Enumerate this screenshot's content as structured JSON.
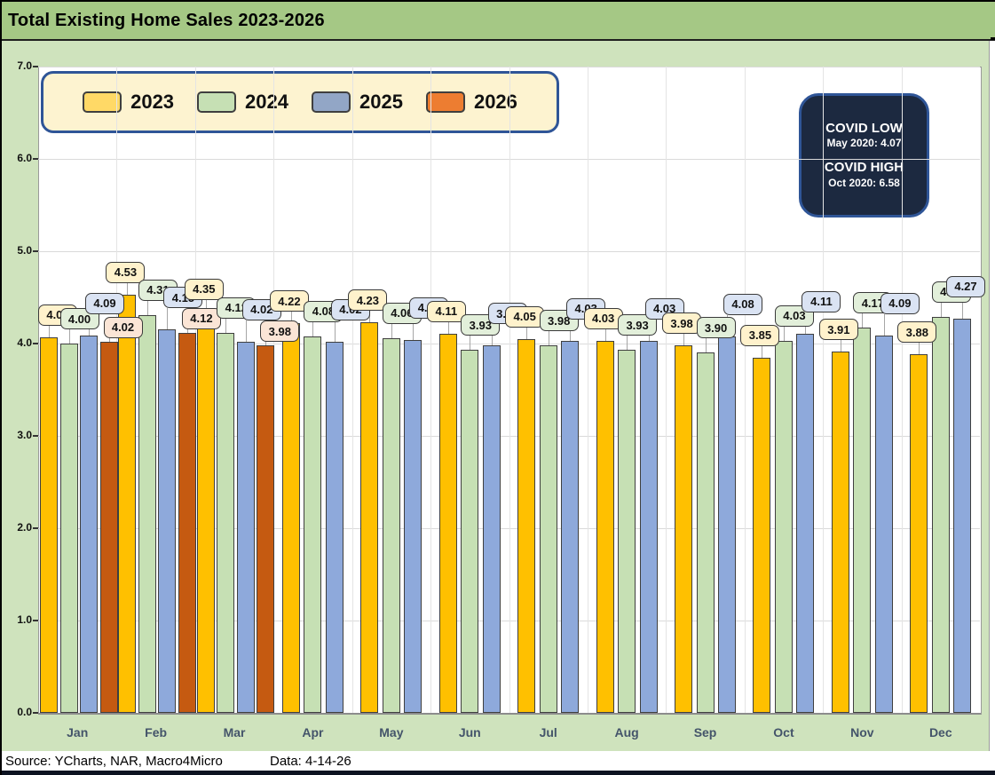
{
  "title": "Total Existing Home Sales 2023-2026",
  "legend": {
    "items": [
      {
        "label": "2023",
        "swatch_color": "#FFD966"
      },
      {
        "label": "2024",
        "swatch_color": "#C6E0B4"
      },
      {
        "label": "2025",
        "swatch_color": "#92A6C6"
      },
      {
        "label": "2026",
        "swatch_color": "#ED7D31"
      }
    ]
  },
  "covid_box": {
    "low_title": "COVID LOW",
    "low_value": "May 2020: 4.07",
    "high_title": "COVID HIGH",
    "high_value": "Oct 2020: 6.58"
  },
  "footer": {
    "source": "Source: YCharts, NAR, Macro4Micro",
    "data_date": "Data: 4-14-26"
  },
  "chart_data": {
    "type": "bar",
    "title": "Total Existing Home Sales 2023-2026",
    "categories": [
      "Jan",
      "Feb",
      "Mar",
      "Apr",
      "May",
      "Jun",
      "Jul",
      "Aug",
      "Sep",
      "Oct",
      "Nov",
      "Dec"
    ],
    "series": [
      {
        "name": "2023",
        "color": "#FFC000",
        "label_bg": "#FFF2CC",
        "values": [
          4.07,
          4.53,
          4.35,
          4.22,
          4.23,
          4.11,
          4.05,
          4.03,
          3.98,
          3.85,
          3.91,
          3.88
        ]
      },
      {
        "name": "2024",
        "color": "#C6E0B4",
        "label_bg": "#E2EFDA",
        "values": [
          4.0,
          4.31,
          4.12,
          4.08,
          4.06,
          3.93,
          3.98,
          3.93,
          3.9,
          4.03,
          4.17,
          4.29
        ]
      },
      {
        "name": "2025",
        "color": "#8EA9DB",
        "label_bg": "#DAE3F3",
        "values": [
          4.09,
          4.15,
          4.02,
          4.02,
          4.04,
          3.98,
          4.03,
          4.03,
          4.08,
          4.11,
          4.09,
          4.27
        ]
      },
      {
        "name": "2026",
        "color": "#C55A11",
        "label_bg": "#FBE5D6",
        "values": [
          4.02,
          4.12,
          3.98,
          null,
          null,
          null,
          null,
          null,
          null,
          null,
          null,
          null
        ]
      }
    ],
    "xlabel": "",
    "ylabel": "",
    "ylim": [
      0,
      7
    ],
    "ytick_step": 1.0,
    "ytick_format": "one_decimal",
    "grid": true,
    "legend_position": "top-left",
    "data_labels": true
  }
}
